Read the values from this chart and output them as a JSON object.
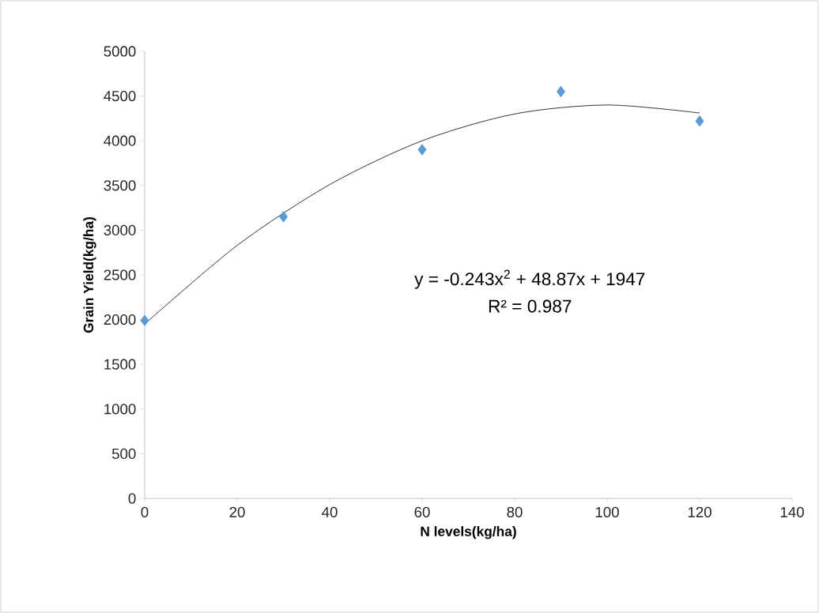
{
  "chart_data": {
    "type": "scatter",
    "xlabel": "N levels(kg/ha)",
    "ylabel": "Grain Yield(kg/ha)",
    "x": [
      0,
      30,
      60,
      90,
      120
    ],
    "series": [
      {
        "color": "#5b9bd5",
        "values": [
          1990,
          3150,
          3900,
          4550,
          4220
        ]
      },
      {
        "type": "line",
        "color": "#000000",
        "marker": "none",
        "x": [
          0,
          20,
          40,
          60,
          80,
          100,
          120
        ],
        "values": [
          1950,
          2830,
          3510,
          4000,
          4300,
          4400,
          4310
        ]
      }
    ],
    "annotations": [
      "y = -0.243x$^{2}$ + 48.87x + 1947",
      "R² = 0.987"
    ],
    "xlim": [
      0,
      140
    ],
    "ylim": [
      0,
      5000
    ],
    "xticks": [
      0,
      20,
      40,
      60,
      80,
      100,
      120,
      140
    ],
    "yticks": [
      0,
      500,
      1000,
      1500,
      2000,
      2500,
      3000,
      3500,
      4000,
      4500,
      5000
    ],
    "marker": "diamond",
    "grid": false
  }
}
